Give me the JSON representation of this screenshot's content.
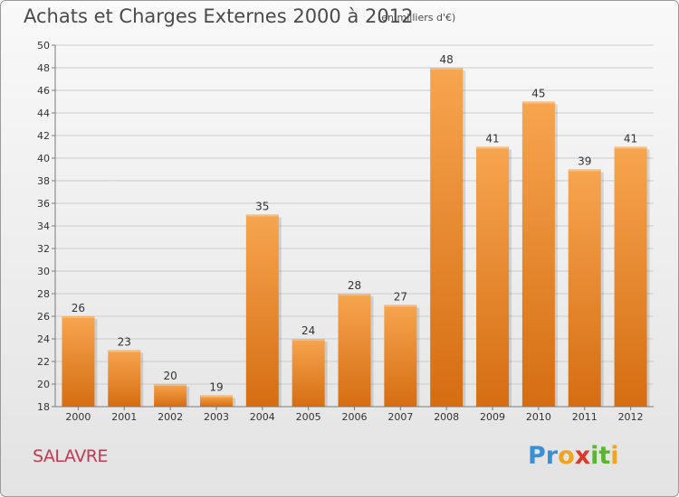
{
  "title": "Achats et Charges Externes 2000 à 2012",
  "subtitle": "(en milliers d'€)",
  "place": "SALAVRE",
  "brand": {
    "letters": [
      "P",
      "r",
      "o",
      "x",
      "i",
      "t",
      "i"
    ],
    "colors": [
      "#3a8fd6",
      "#3a8fd6",
      "#f2a31f",
      "#d93a2b",
      "#5bb531",
      "#5bb531",
      "#f2a31f"
    ]
  },
  "colors": {
    "bar_top": "#f7a54f",
    "bar_bottom": "#d56d12",
    "axis": "#7a7a7a",
    "grid": "#cccccc",
    "text": "#333333"
  },
  "chart_data": {
    "type": "bar",
    "categories": [
      "2000",
      "2001",
      "2002",
      "2003",
      "2004",
      "2005",
      "2006",
      "2007",
      "2008",
      "2009",
      "2010",
      "2011",
      "2012"
    ],
    "values": [
      26,
      23,
      20,
      19,
      35,
      24,
      28,
      27,
      48,
      41,
      45,
      39,
      41
    ],
    "ylim": [
      18,
      50
    ],
    "yticks": [
      18,
      20,
      22,
      24,
      26,
      28,
      30,
      32,
      34,
      36,
      38,
      40,
      42,
      44,
      46,
      48,
      50
    ],
    "grid": true,
    "data_labels": true
  }
}
